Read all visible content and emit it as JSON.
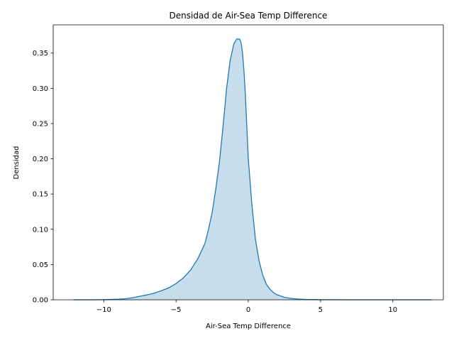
{
  "chart_data": {
    "type": "area",
    "title": "Densidad de Air-Sea Temp Difference",
    "xlabel": "Air-Sea Temp Difference",
    "ylabel": "Densidad",
    "xlim": [
      -13.5,
      13.5
    ],
    "ylim": [
      0,
      0.39
    ],
    "xticks": [
      -10,
      -5,
      0,
      5,
      10
    ],
    "xtick_labels": [
      "−10",
      "−5",
      "0",
      "5",
      "10"
    ],
    "yticks": [
      0.0,
      0.05,
      0.1,
      0.15,
      0.2,
      0.25,
      0.3,
      0.35
    ],
    "ytick_labels": [
      "0.00",
      "0.05",
      "0.10",
      "0.15",
      "0.20",
      "0.25",
      "0.30",
      "0.35"
    ],
    "grid": false,
    "colors": {
      "line": "#1f77b4",
      "fill": "#1f77b4",
      "fill_opacity": 0.25
    },
    "series": [
      {
        "x": [
          -12.1,
          -11,
          -10,
          -9,
          -8.5,
          -8,
          -7.5,
          -7,
          -6.5,
          -6,
          -5.5,
          -5,
          -4.5,
          -4,
          -3.5,
          -3,
          -2.75,
          -2.5,
          -2.25,
          -2,
          -1.75,
          -1.5,
          -1.25,
          -1,
          -0.8,
          -0.6,
          -0.5,
          -0.4,
          -0.3,
          -0.2,
          -0.1,
          0,
          0.25,
          0.5,
          0.75,
          1,
          1.25,
          1.5,
          1.75,
          2,
          2.5,
          3,
          3.5,
          4,
          5,
          7,
          10,
          12.7
        ],
        "y": [
          0.0,
          0.0,
          0.0002,
          0.0008,
          0.0015,
          0.003,
          0.005,
          0.007,
          0.0095,
          0.013,
          0.017,
          0.023,
          0.031,
          0.042,
          0.058,
          0.08,
          0.1,
          0.124,
          0.157,
          0.195,
          0.245,
          0.3,
          0.34,
          0.363,
          0.37,
          0.37,
          0.365,
          0.35,
          0.325,
          0.29,
          0.245,
          0.2,
          0.135,
          0.085,
          0.055,
          0.035,
          0.022,
          0.015,
          0.01,
          0.007,
          0.0035,
          0.0018,
          0.001,
          0.0005,
          0.0002,
          0.0,
          0.0,
          0.0
        ]
      }
    ]
  }
}
